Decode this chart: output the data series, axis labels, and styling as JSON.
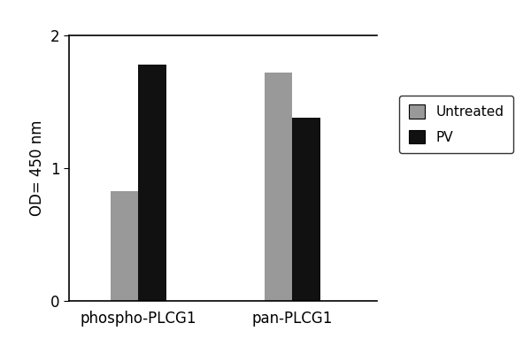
{
  "categories": [
    "phospho-PLCG1",
    "pan-PLCG1"
  ],
  "untreated_values": [
    0.83,
    1.72
  ],
  "pv_values": [
    1.78,
    1.38
  ],
  "untreated_color": "#999999",
  "pv_color": "#111111",
  "ylabel": "OD= 450 nm",
  "ylim": [
    0,
    2.0
  ],
  "yticks": [
    0,
    1,
    2
  ],
  "legend_labels": [
    "Untreated",
    "PV"
  ],
  "bar_width": 0.18,
  "group_centers": [
    0.75,
    1.75
  ],
  "xlim": [
    0.3,
    2.3
  ],
  "figsize": [
    6.0,
    4.0
  ],
  "dpi": 100
}
